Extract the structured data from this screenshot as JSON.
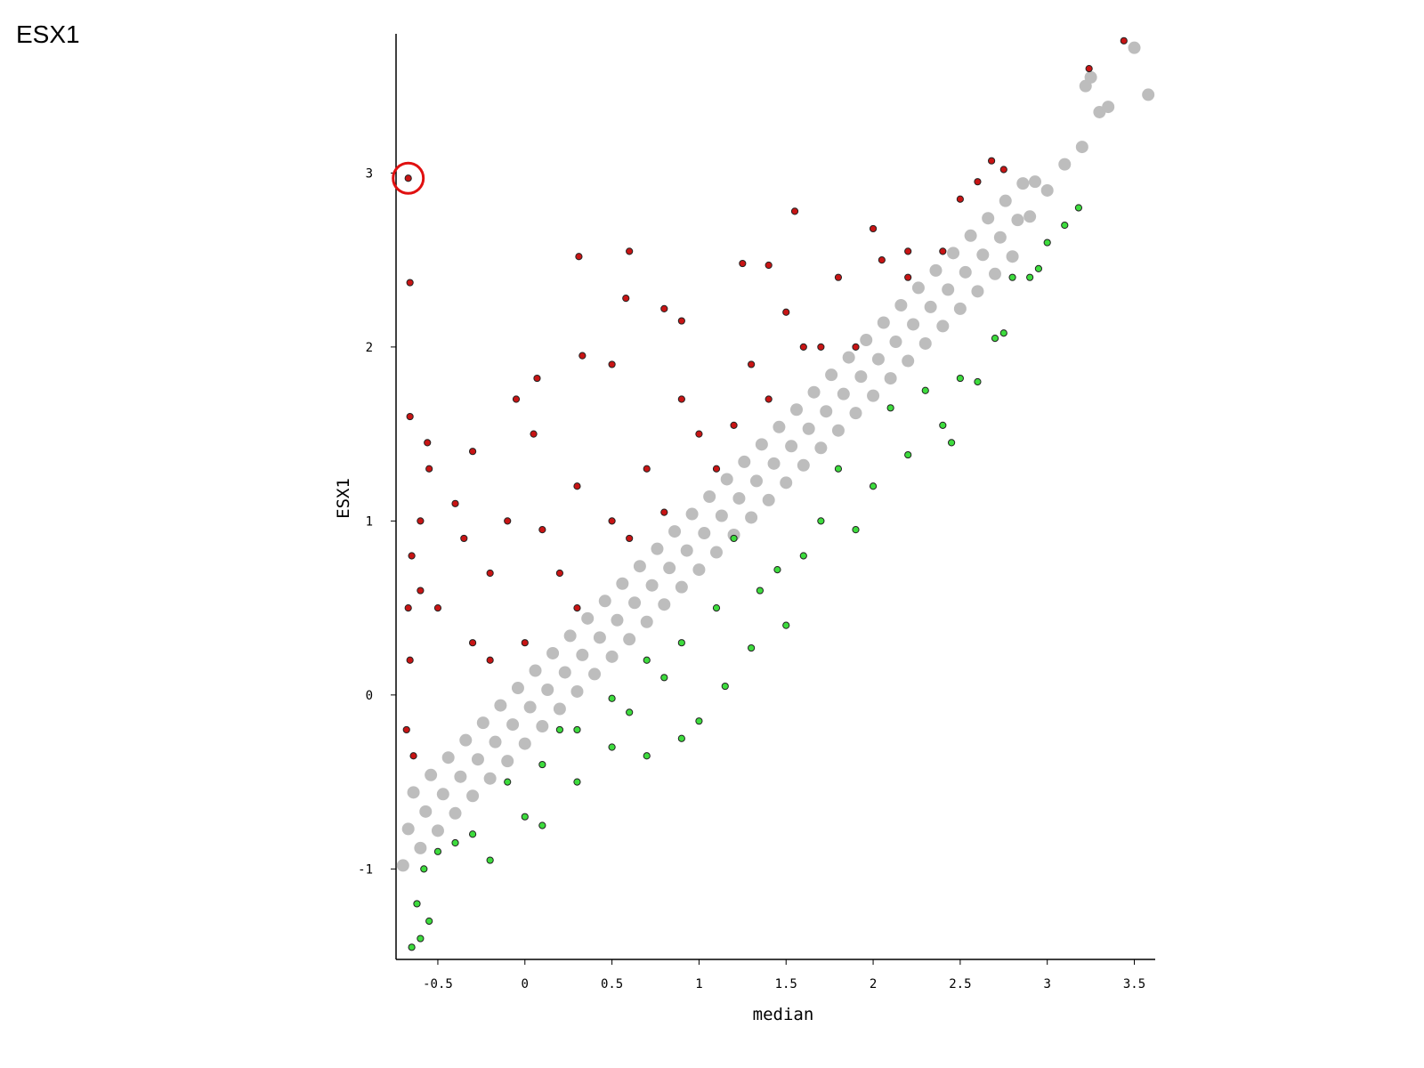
{
  "chart_data": {
    "type": "scatter",
    "title": "ESX1",
    "x_label": "median",
    "y_label": "ESX1",
    "xlim": [
      -0.74,
      3.62
    ],
    "ylim": [
      -1.52,
      3.8
    ],
    "xticks": [
      -0.5,
      0,
      0.5,
      1,
      1.5,
      2,
      2.5,
      3,
      3.5
    ],
    "yticks": [
      -1,
      0,
      1,
      2,
      3
    ],
    "series": [
      {
        "color": "#bdbdbd",
        "x": [
          -0.7,
          -0.67,
          -0.64,
          -0.6,
          -0.57,
          -0.54,
          -0.5,
          -0.47,
          -0.44,
          -0.4,
          -0.37,
          -0.34,
          -0.3,
          -0.27,
          -0.24,
          -0.2,
          -0.17,
          -0.14,
          -0.1,
          -0.07,
          -0.04,
          0,
          0.03,
          0.06,
          0.1,
          0.13,
          0.16,
          0.2,
          0.23,
          0.26,
          0.3,
          0.33,
          0.36,
          0.4,
          0.43,
          0.46,
          0.5,
          0.53,
          0.56,
          0.6,
          0.63,
          0.66,
          0.7,
          0.73,
          0.76,
          0.8,
          0.83,
          0.86,
          0.9,
          0.93,
          0.96,
          1.0,
          1.03,
          1.06,
          1.1,
          1.13,
          1.16,
          1.2,
          1.23,
          1.26,
          1.3,
          1.33,
          1.36,
          1.4,
          1.43,
          1.46,
          1.5,
          1.53,
          1.56,
          1.6,
          1.63,
          1.66,
          1.7,
          1.73,
          1.76,
          1.8,
          1.83,
          1.86,
          1.9,
          1.93,
          1.96,
          2.0,
          2.03,
          2.06,
          2.1,
          2.13,
          2.16,
          2.2,
          2.23,
          2.26,
          2.3,
          2.33,
          2.36,
          2.4,
          2.43,
          2.46,
          2.5,
          2.53,
          2.56,
          2.6,
          2.63,
          2.66,
          2.7,
          2.73,
          2.76,
          2.8,
          2.83,
          2.86,
          2.9,
          2.93,
          3.0,
          3.1,
          3.2,
          3.25,
          3.3,
          3.35,
          3.5,
          3.58,
          3.22
        ],
        "values": [
          -0.98,
          -0.77,
          -0.56,
          -0.88,
          -0.67,
          -0.46,
          -0.78,
          -0.57,
          -0.36,
          -0.68,
          -0.47,
          -0.26,
          -0.58,
          -0.37,
          -0.16,
          -0.48,
          -0.27,
          -0.06,
          -0.38,
          -0.17,
          0.04,
          -0.28,
          -0.07,
          0.14,
          -0.18,
          0.03,
          0.24,
          -0.08,
          0.13,
          0.34,
          0.02,
          0.23,
          0.44,
          0.12,
          0.33,
          0.54,
          0.22,
          0.43,
          0.64,
          0.32,
          0.53,
          0.74,
          0.42,
          0.63,
          0.84,
          0.52,
          0.73,
          0.94,
          0.62,
          0.83,
          1.04,
          0.72,
          0.93,
          1.14,
          0.82,
          1.03,
          1.24,
          0.92,
          1.13,
          1.34,
          1.02,
          1.23,
          1.44,
          1.12,
          1.33,
          1.54,
          1.22,
          1.43,
          1.64,
          1.32,
          1.53,
          1.74,
          1.42,
          1.63,
          1.84,
          1.52,
          1.73,
          1.94,
          1.62,
          1.83,
          2.04,
          1.72,
          1.93,
          2.14,
          1.82,
          2.03,
          2.24,
          1.92,
          2.13,
          2.34,
          2.02,
          2.23,
          2.44,
          2.12,
          2.33,
          2.54,
          2.22,
          2.43,
          2.64,
          2.32,
          2.53,
          2.74,
          2.42,
          2.63,
          2.84,
          2.52,
          2.73,
          2.94,
          2.75,
          2.95,
          2.9,
          3.05,
          3.15,
          3.55,
          3.35,
          3.38,
          3.72,
          3.45,
          3.5
        ]
      },
      {
        "color": "#c81414",
        "x": [
          -0.67,
          -0.66,
          -0.66,
          -0.56,
          -0.55,
          -0.6,
          -0.65,
          -0.67,
          -0.66,
          -0.68,
          -0.64,
          -0.6,
          -0.4,
          -0.3,
          -0.35,
          -0.5,
          -0.3,
          -0.2,
          -0.1,
          -0.05,
          0.05,
          0.1,
          0.07,
          0.2,
          0.3,
          0.33,
          0.31,
          0.5,
          0.6,
          0.58,
          0.5,
          0.7,
          0.8,
          0.9,
          0.9,
          1.0,
          1.1,
          1.25,
          1.4,
          1.55,
          1.3,
          1.5,
          1.6,
          1.8,
          1.9,
          2.0,
          2.05,
          2.2,
          2.4,
          2.5,
          2.6,
          2.68,
          2.75,
          3.44,
          3.24,
          0.0,
          0.3,
          0.6,
          1.2,
          1.7,
          -0.2,
          0.8,
          1.4,
          2.2
        ],
        "values": [
          2.97,
          2.37,
          1.6,
          1.45,
          1.3,
          1.0,
          0.8,
          0.5,
          0.2,
          -0.2,
          -0.35,
          0.6,
          1.1,
          1.4,
          0.9,
          0.5,
          0.3,
          0.7,
          1.0,
          1.7,
          1.5,
          0.95,
          1.82,
          0.7,
          1.2,
          1.95,
          2.52,
          1.9,
          2.55,
          2.28,
          1.0,
          1.3,
          2.22,
          2.15,
          1.7,
          1.5,
          1.3,
          2.48,
          2.47,
          2.78,
          1.9,
          2.2,
          2.0,
          2.4,
          2.0,
          2.68,
          2.5,
          2.55,
          2.55,
          2.85,
          2.95,
          3.07,
          3.02,
          3.76,
          3.6,
          0.3,
          0.5,
          0.9,
          1.55,
          2.0,
          0.2,
          1.05,
          1.7,
          2.4
        ]
      },
      {
        "color": "#3ddc3d",
        "x": [
          -0.65,
          -0.6,
          -0.62,
          -0.58,
          -0.55,
          -0.5,
          -0.4,
          -0.3,
          -0.2,
          -0.1,
          0,
          0.1,
          0.1,
          0.3,
          0.3,
          0.5,
          0.6,
          0.5,
          0.7,
          0.8,
          0.9,
          1.0,
          0.9,
          1.1,
          1.15,
          1.3,
          1.35,
          1.5,
          1.6,
          1.7,
          1.9,
          2.0,
          2.2,
          2.3,
          2.4,
          2.45,
          2.5,
          2.6,
          2.7,
          2.75,
          2.8,
          2.9,
          2.95,
          3.0,
          3.1,
          3.18,
          1.2,
          0.7,
          1.8,
          2.1,
          0.2,
          1.45
        ],
        "values": [
          -1.45,
          -1.4,
          -1.2,
          -1.0,
          -1.3,
          -0.9,
          -0.85,
          -0.8,
          -0.95,
          -0.5,
          -0.7,
          -0.75,
          -0.4,
          -0.5,
          -0.2,
          -0.3,
          -0.1,
          -0.02,
          -0.35,
          0.1,
          -0.25,
          -0.15,
          0.3,
          0.5,
          0.05,
          0.27,
          0.6,
          0.4,
          0.8,
          1.0,
          0.95,
          1.2,
          1.38,
          1.75,
          1.55,
          1.45,
          1.82,
          1.8,
          2.05,
          2.08,
          2.4,
          2.4,
          2.45,
          2.6,
          2.7,
          2.8,
          0.9,
          0.2,
          1.3,
          1.65,
          -0.2,
          0.72
        ]
      }
    ]
  }
}
